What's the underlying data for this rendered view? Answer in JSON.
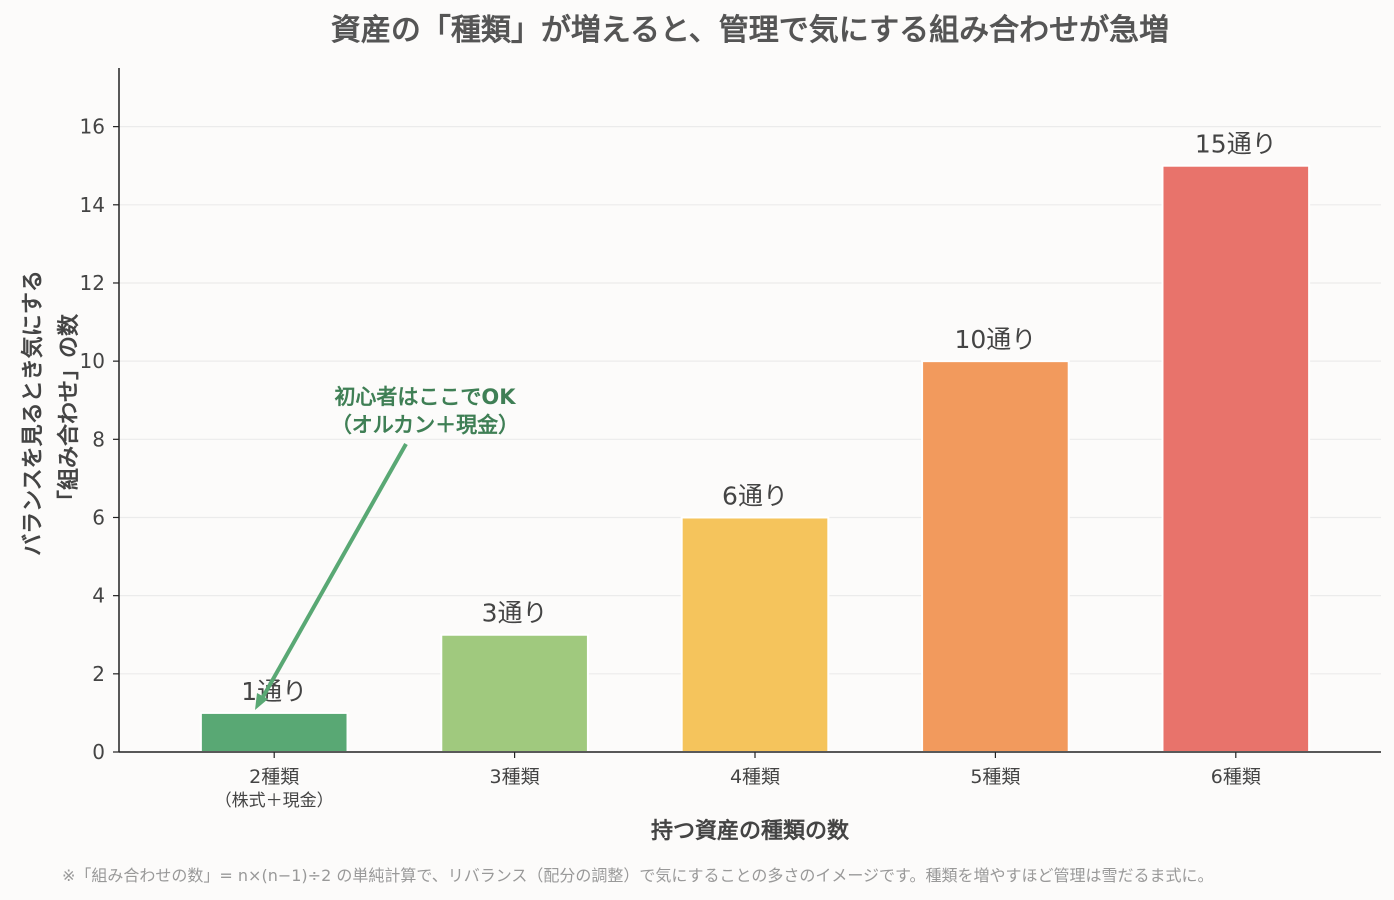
{
  "chart_data": {
    "type": "bar",
    "title": "資産の「種類」が増えると、管理で気にする組み合わせが急増",
    "xlabel": "持つ資産の種類の数",
    "ylabel_lines": [
      "バランスを見るとき気にする",
      "「組み合わせ」の数"
    ],
    "categories": [
      "2種類",
      "3種類",
      "4種類",
      "5種類",
      "6種類"
    ],
    "category_sublabels": [
      "（株式＋現金）",
      "",
      "",
      "",
      ""
    ],
    "values": [
      1,
      3,
      6,
      10,
      15
    ],
    "data_labels": [
      "1通り",
      "3通り",
      "6通り",
      "10通り",
      "15通り"
    ],
    "colors": [
      "#59a874",
      "#a0c97e",
      "#f5c45c",
      "#f29a5d",
      "#e8736b"
    ],
    "ylim": [
      0,
      17.5
    ],
    "yticks": [
      0,
      2,
      4,
      6,
      8,
      10,
      12,
      14,
      16
    ],
    "grid": true,
    "annotation": {
      "lines": [
        "初心者はここでOK",
        "（オルカン＋現金）"
      ],
      "color": "#59a874",
      "target_category": "2種類"
    },
    "footnote": "※「組み合わせの数」= n×(n−1)÷2 の単純計算で、リバランス（配分の調整）で気にすることの多さのイメージです。種類を増やすほど管理は雪だるま式に。"
  }
}
